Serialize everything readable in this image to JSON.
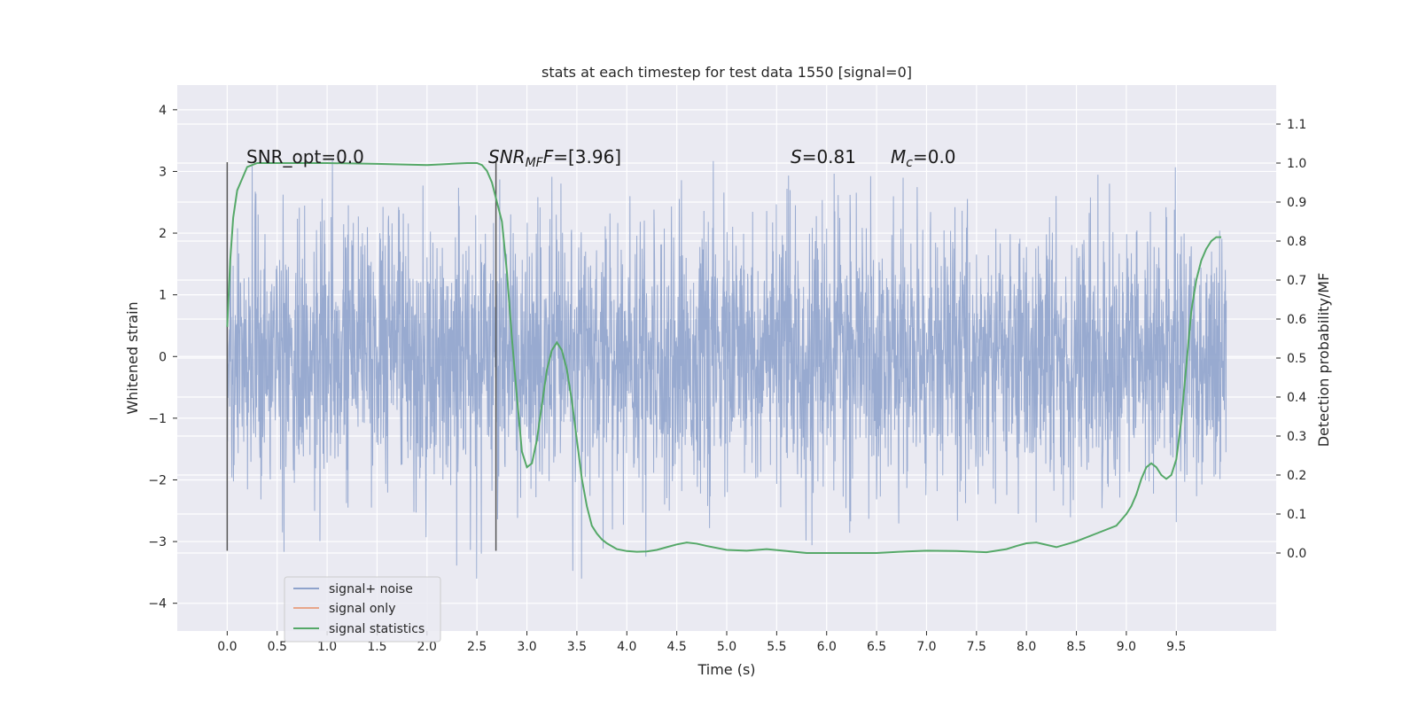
{
  "chart_data": {
    "type": "line",
    "title": "stats at each timestep for test data 1550 [signal=0]",
    "xlabel": "Time (s)",
    "ylabel_left": "Whitened strain",
    "ylabel_right": "Detection probability/MF",
    "xlim": [
      -0.5,
      10.5
    ],
    "ylim_left": [
      -4.45,
      4.4
    ],
    "ylim_right": [
      -0.2,
      1.2
    ],
    "xticks": [
      "0.0",
      "0.5",
      "1.0",
      "1.5",
      "2.0",
      "2.5",
      "3.0",
      "3.5",
      "4.0",
      "4.5",
      "5.0",
      "5.5",
      "6.0",
      "6.5",
      "7.0",
      "7.5",
      "8.0",
      "8.5",
      "9.0",
      "9.5"
    ],
    "yticks_left": [
      "4",
      "3",
      "2",
      "1",
      "0",
      "−1",
      "−2",
      "−3",
      "−4"
    ],
    "yticks_right": [
      "1.1",
      "1.0",
      "0.9",
      "0.8",
      "0.7",
      "0.6",
      "0.5",
      "0.4",
      "0.3",
      "0.2",
      "0.1",
      "0.0"
    ],
    "grid": true,
    "legend_position": "lower-left",
    "annotations": {
      "snr_opt": "SNR_opt=0.0",
      "snr_mf_base": "SNR",
      "snr_mf_sub": "MF",
      "snr_mf_value": "=[3.96]",
      "s_base": "S",
      "s_value": "=0.81",
      "mc_base": "M",
      "mc_sub": "c",
      "mc_value": "=0.0"
    },
    "vertical_markers": [
      0.0,
      2.69
    ],
    "noise_range": [
      0.0,
      10.0
    ],
    "series": [
      {
        "name": "signal+ noise",
        "color": "#8fa3cc",
        "description_range": [
          -3.6,
          4.0
        ]
      },
      {
        "name": "signal only",
        "color": "#e8a68a"
      },
      {
        "name": "signal statistics",
        "color": "#55a868",
        "x": [
          0.0,
          0.03,
          0.06,
          0.1,
          0.15,
          0.2,
          0.3,
          0.5,
          1.0,
          1.5,
          2.0,
          2.4,
          2.5,
          2.55,
          2.6,
          2.65,
          2.7,
          2.75,
          2.8,
          2.85,
          2.9,
          2.95,
          3.0,
          3.05,
          3.1,
          3.15,
          3.2,
          3.25,
          3.3,
          3.35,
          3.4,
          3.45,
          3.5,
          3.55,
          3.6,
          3.65,
          3.7,
          3.75,
          3.8,
          3.9,
          4.0,
          4.1,
          4.2,
          4.3,
          4.4,
          4.5,
          4.6,
          4.7,
          4.8,
          5.0,
          5.2,
          5.4,
          5.6,
          5.8,
          6.0,
          6.5,
          6.8,
          7.0,
          7.3,
          7.6,
          7.8,
          7.9,
          8.0,
          8.1,
          8.3,
          8.5,
          8.7,
          8.9,
          9.0,
          9.05,
          9.1,
          9.15,
          9.2,
          9.25,
          9.3,
          9.35,
          9.4,
          9.45,
          9.5,
          9.55,
          9.6,
          9.65,
          9.7,
          9.75,
          9.8,
          9.85,
          9.9,
          9.95
        ],
        "values": [
          0.58,
          0.75,
          0.86,
          0.93,
          0.96,
          0.99,
          1.0,
          1.0,
          1.0,
          0.998,
          0.995,
          1.0,
          1.0,
          0.995,
          0.98,
          0.95,
          0.9,
          0.85,
          0.72,
          0.55,
          0.4,
          0.26,
          0.22,
          0.23,
          0.29,
          0.38,
          0.47,
          0.52,
          0.54,
          0.52,
          0.47,
          0.39,
          0.29,
          0.19,
          0.12,
          0.07,
          0.05,
          0.035,
          0.025,
          0.01,
          0.005,
          0.003,
          0.004,
          0.008,
          0.015,
          0.022,
          0.027,
          0.024,
          0.018,
          0.008,
          0.006,
          0.01,
          0.005,
          0.0,
          0.0,
          0.0,
          0.004,
          0.006,
          0.005,
          0.002,
          0.01,
          0.018,
          0.025,
          0.027,
          0.015,
          0.03,
          0.05,
          0.07,
          0.1,
          0.12,
          0.15,
          0.19,
          0.22,
          0.23,
          0.22,
          0.2,
          0.19,
          0.2,
          0.24,
          0.34,
          0.48,
          0.62,
          0.7,
          0.75,
          0.78,
          0.8,
          0.81,
          0.81
        ]
      }
    ]
  }
}
